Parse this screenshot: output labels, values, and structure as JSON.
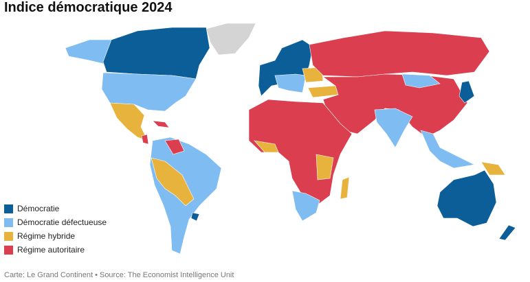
{
  "title": "Indice démocratique 2024",
  "legend": [
    {
      "label": "Démocratie",
      "color": "#0b5e98"
    },
    {
      "label": "Démocratie défectueuse",
      "color": "#7fbcf2"
    },
    {
      "label": "Régime hybride",
      "color": "#e8b33d"
    },
    {
      "label": "Régime autoritaire",
      "color": "#db3f4f"
    }
  ],
  "source": "Carte: Le Grand Continent • Source: The Economist Intelligence Unit"
}
